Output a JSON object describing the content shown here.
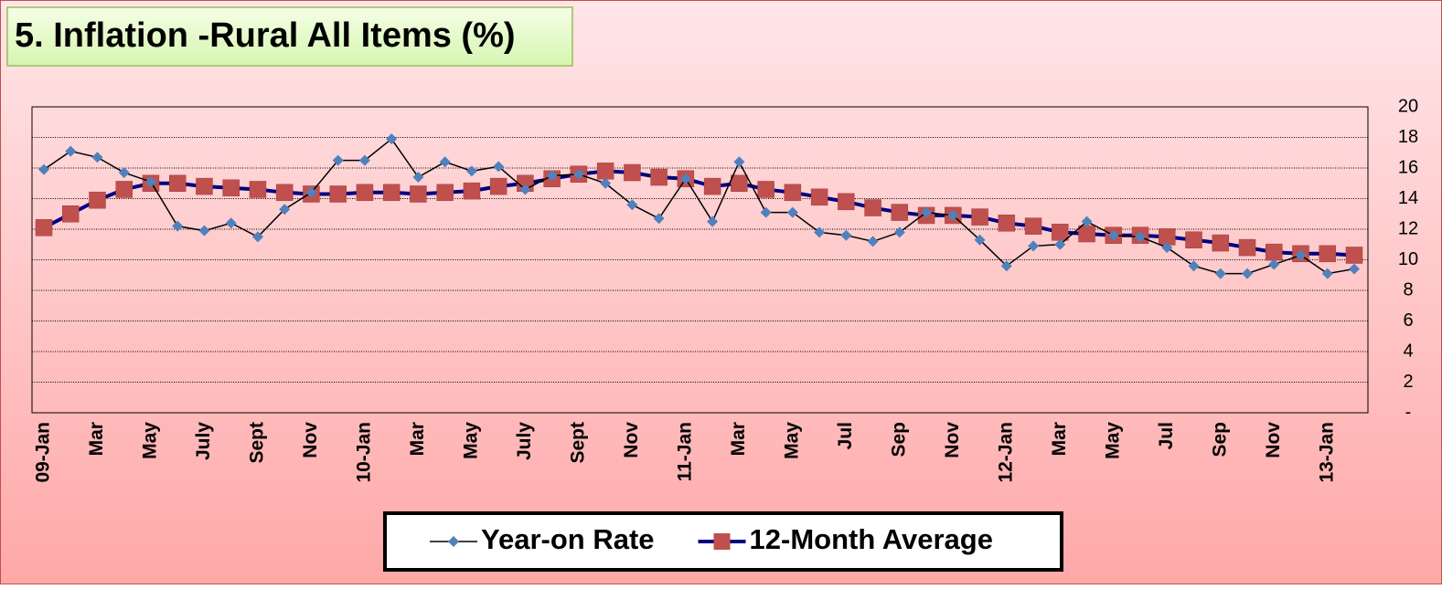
{
  "chart_data": {
    "type": "line",
    "title": "5. Inflation -Rural All Items (%)",
    "categories": [
      "09-Jan",
      null,
      "Mar",
      null,
      "May",
      null,
      "July",
      null,
      "Sept",
      null,
      "Nov",
      null,
      "10-Jan",
      null,
      "Mar",
      null,
      "May",
      null,
      "July",
      null,
      "Sept",
      null,
      "Nov",
      null,
      "11-Jan",
      null,
      "Mar",
      null,
      "May",
      null,
      "Jul",
      null,
      "Sep",
      null,
      "Nov",
      null,
      "12-Jan",
      null,
      "Mar",
      null,
      "May",
      null,
      "Jul",
      null,
      "Sep",
      null,
      "Nov",
      null,
      "13-Jan",
      null
    ],
    "series": [
      {
        "name": "Year-on Rate",
        "color": "#4f81bd",
        "line_color": "#000000",
        "marker": "diamond",
        "values": [
          15.9,
          17.1,
          16.7,
          15.7,
          15.1,
          12.2,
          11.9,
          12.4,
          11.5,
          13.3,
          14.4,
          16.5,
          16.5,
          17.9,
          15.4,
          16.4,
          15.8,
          16.1,
          14.6,
          15.5,
          15.6,
          15.0,
          13.6,
          12.7,
          15.3,
          12.5,
          16.4,
          13.1,
          13.1,
          11.8,
          11.6,
          11.2,
          11.8,
          13.1,
          12.9,
          11.3,
          9.6,
          10.9,
          11.0,
          12.5,
          11.6,
          11.5,
          10.8,
          9.6,
          9.1,
          9.1,
          9.7,
          10.3,
          9.1,
          9.4
        ]
      },
      {
        "name": "12-Month Average",
        "color": "#c0504d",
        "line_color": "#000080",
        "marker": "square",
        "values": [
          12.1,
          13.0,
          13.9,
          14.6,
          15.0,
          15.0,
          14.8,
          14.7,
          14.6,
          14.4,
          14.3,
          14.3,
          14.4,
          14.4,
          14.3,
          14.4,
          14.5,
          14.8,
          15.0,
          15.3,
          15.6,
          15.8,
          15.7,
          15.4,
          15.3,
          14.8,
          15.0,
          14.6,
          14.4,
          14.1,
          13.8,
          13.4,
          13.1,
          12.9,
          12.9,
          12.8,
          12.4,
          12.2,
          11.8,
          11.7,
          11.6,
          11.6,
          11.5,
          11.3,
          11.1,
          10.8,
          10.5,
          10.4,
          10.4,
          10.3
        ]
      }
    ],
    "ylim": [
      0,
      20
    ],
    "yticks": [
      {
        "value": 0,
        "label": "-"
      },
      2,
      4,
      6,
      8,
      10,
      12,
      14,
      16,
      18,
      20
    ],
    "y_axis_side": "right",
    "grid": true,
    "legend": "bottom"
  }
}
